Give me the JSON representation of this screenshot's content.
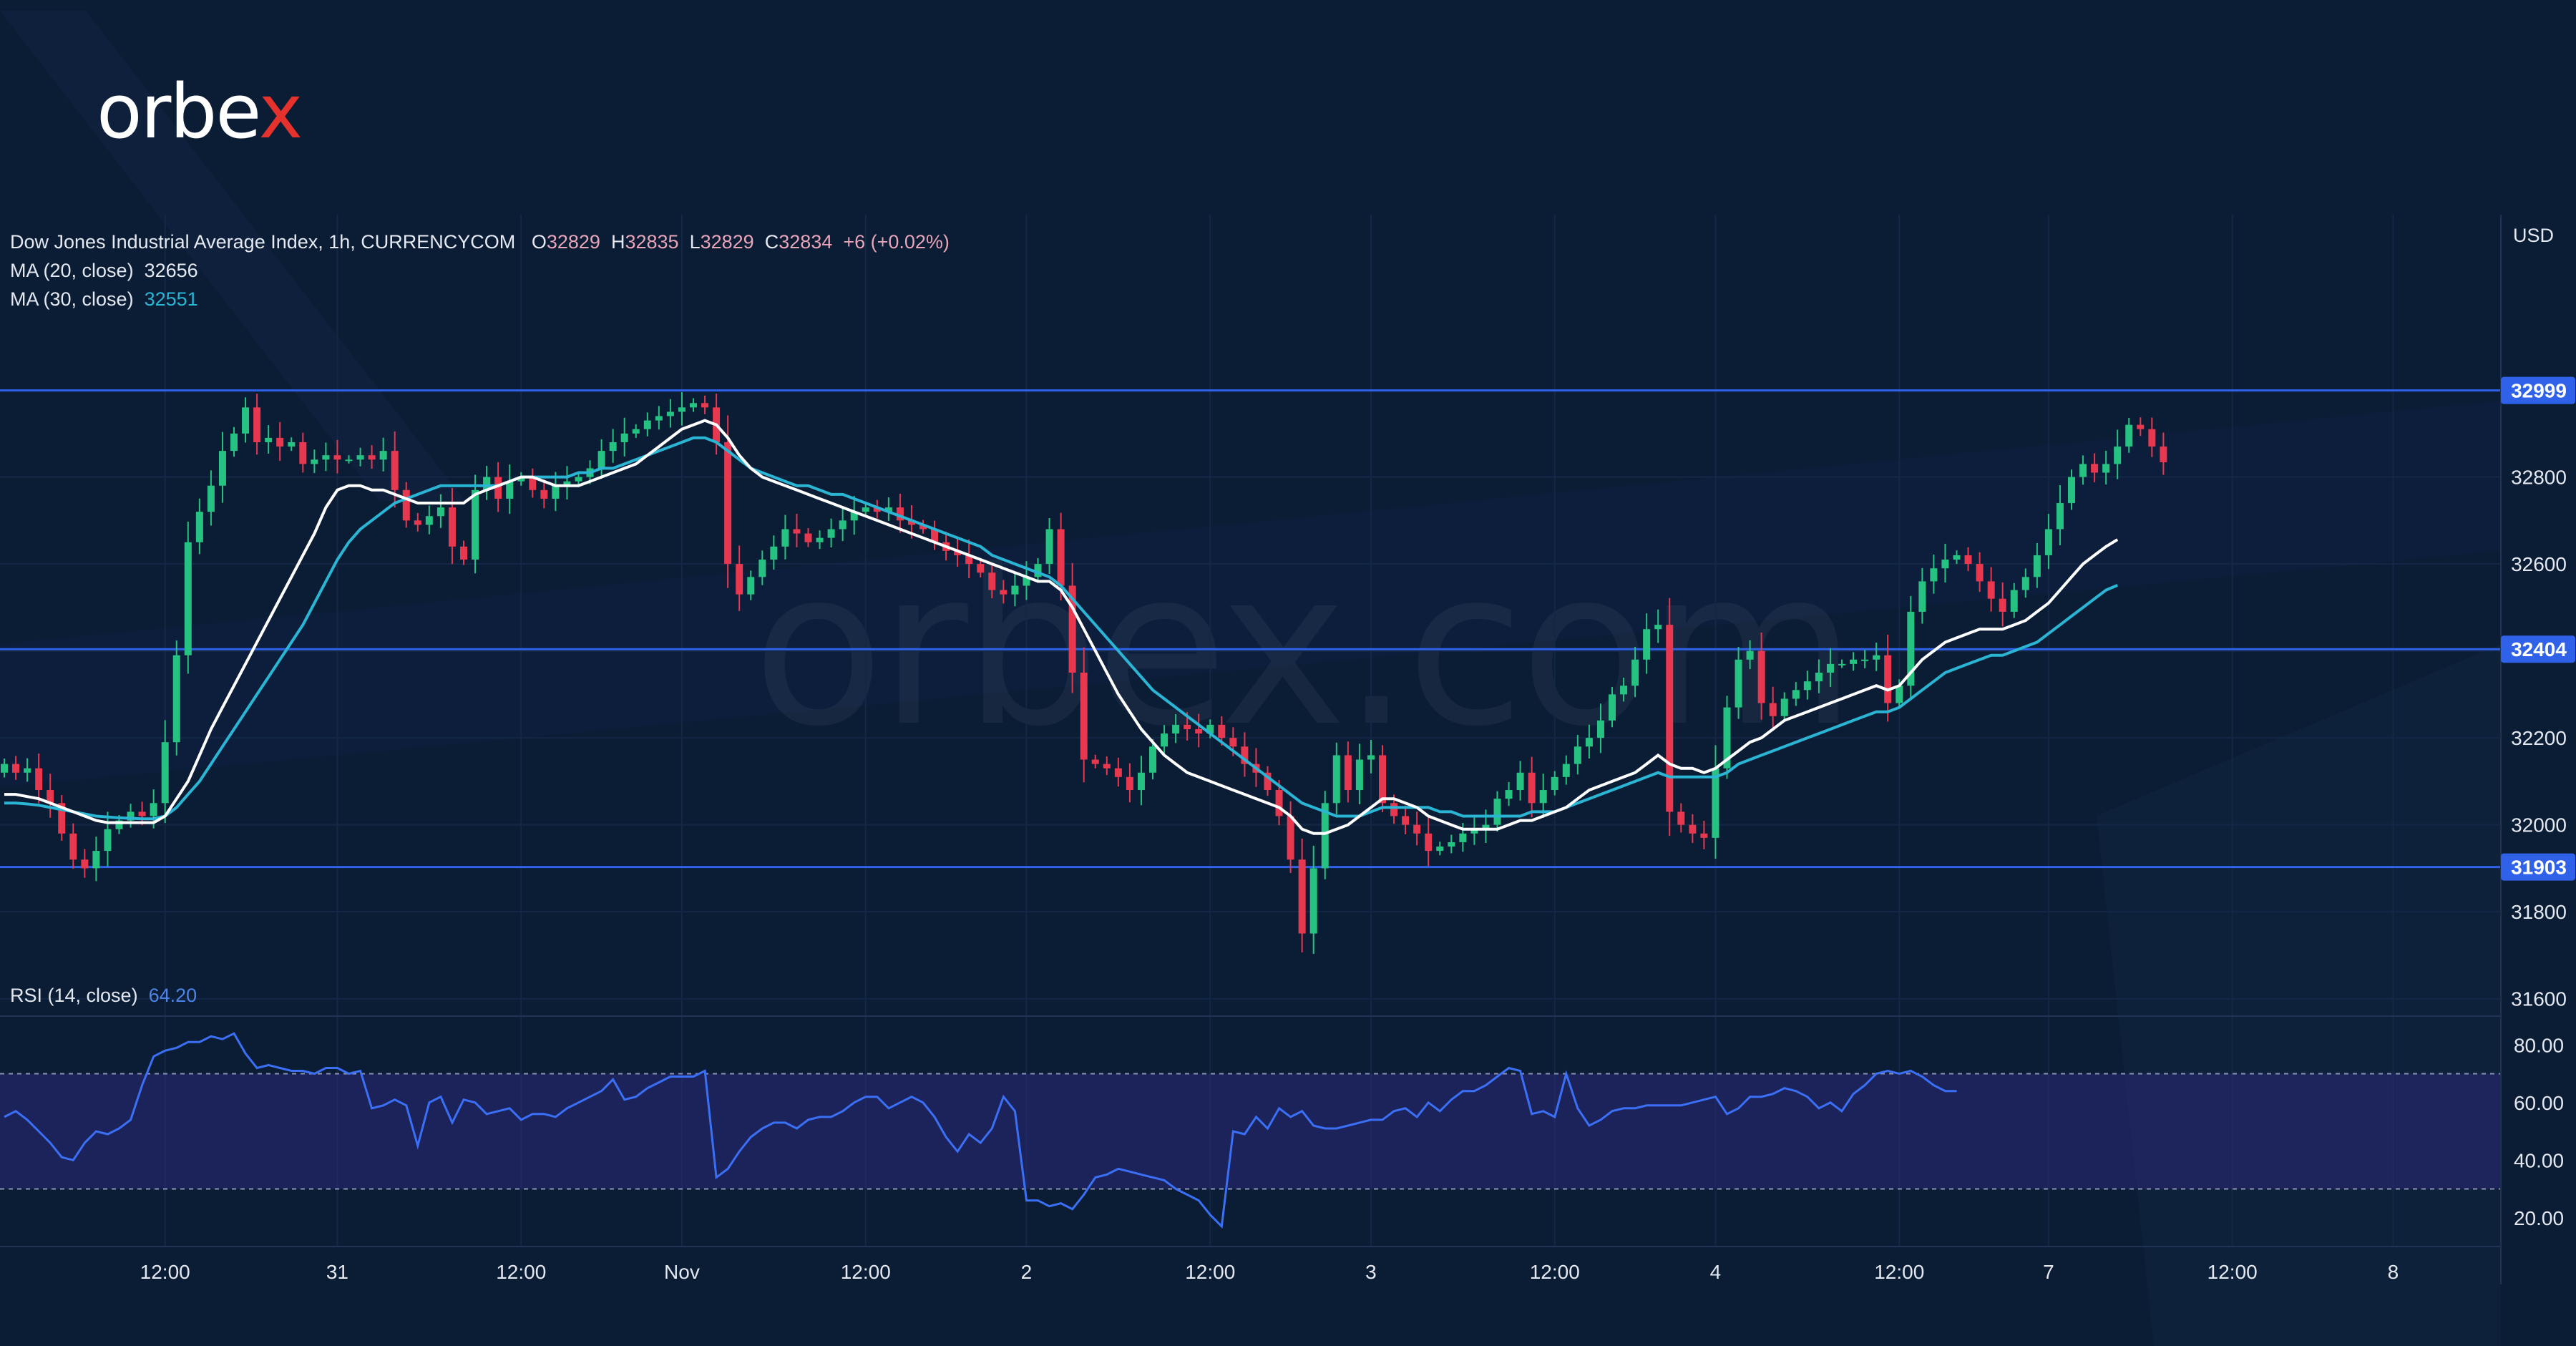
{
  "brand": {
    "logo_text": "orbex",
    "watermark_text": "orbex.com",
    "accent_color": "#e5322d"
  },
  "legend": {
    "symbol": "Dow Jones Industrial Average Index, 1h, CURRENCYCOM",
    "o_label": "O",
    "o_value": "32829",
    "h_label": "H",
    "h_value": "32835",
    "l_label": "L",
    "l_value": "32829",
    "c_label": "C",
    "c_value": "32834",
    "change": "+6 (+0.02%)",
    "ma20_label": "MA (20, close)",
    "ma20_value": "32656",
    "ma30_label": "MA (30, close)",
    "ma30_value": "32551",
    "rsi_label": "RSI (14, close)",
    "rsi_value": "64.20"
  },
  "currency": "USD",
  "colors": {
    "up": "#26c281",
    "down": "#e8384f",
    "ma20": "#ffffff",
    "ma30": "#29b5d3",
    "level": "#2f62e8",
    "rsi": "#3b6ff5",
    "rsi_band": "#2a2a78"
  },
  "chart_data": {
    "type": "candlestick",
    "y_range": [
      31560,
      33140
    ],
    "y_ticks": [
      "31600",
      "31800",
      "32000",
      "32200",
      "32400",
      "32600",
      "32800"
    ],
    "levels": [
      {
        "value": 32999,
        "label": "32999"
      },
      {
        "value": 32404,
        "label": "32404"
      },
      {
        "value": 31903,
        "label": "31903"
      }
    ],
    "x_labels": [
      {
        "i": 14,
        "label": "12:00"
      },
      {
        "i": 29,
        "label": "31"
      },
      {
        "i": 45,
        "label": "12:00"
      },
      {
        "i": 59,
        "label": "Nov"
      },
      {
        "i": 75,
        "label": "12:00"
      },
      {
        "i": 89,
        "label": "2"
      },
      {
        "i": 105,
        "label": "12:00"
      },
      {
        "i": 119,
        "label": "3"
      },
      {
        "i": 135,
        "label": "12:00"
      },
      {
        "i": 149,
        "label": "4"
      },
      {
        "i": 165,
        "label": "12:00"
      },
      {
        "i": 178,
        "label": "7"
      },
      {
        "i": 194,
        "label": "12:00"
      },
      {
        "i": 208,
        "label": "8"
      }
    ],
    "close": [
      32140,
      32120,
      32130,
      32080,
      32050,
      31980,
      31920,
      31900,
      31940,
      31990,
      32010,
      32030,
      32020,
      32050,
      32190,
      32390,
      32650,
      32720,
      32780,
      32860,
      32900,
      32960,
      32880,
      32890,
      32870,
      32880,
      32830,
      32840,
      32850,
      32840,
      32840,
      32850,
      32840,
      32860,
      32770,
      32700,
      32690,
      32710,
      32730,
      32640,
      32610,
      32770,
      32800,
      32750,
      32790,
      32800,
      32770,
      32750,
      32780,
      32790,
      32800,
      32820,
      32860,
      32880,
      32900,
      32910,
      32930,
      32940,
      32950,
      32960,
      32970,
      32960,
      32880,
      32600,
      32530,
      32570,
      32610,
      32640,
      32680,
      32670,
      32650,
      32660,
      32680,
      32700,
      32720,
      32730,
      32720,
      32730,
      32700,
      32690,
      32680,
      32650,
      32630,
      32620,
      32600,
      32580,
      32540,
      32530,
      32550,
      32570,
      32600,
      32680,
      32550,
      32350,
      32150,
      32140,
      32130,
      32110,
      32080,
      32120,
      32180,
      32210,
      32230,
      32220,
      32210,
      32230,
      32200,
      32180,
      32140,
      32120,
      32080,
      32020,
      31920,
      31750,
      31900,
      32050,
      32160,
      32080,
      32150,
      32160,
      32050,
      32020,
      32000,
      31980,
      31940,
      31950,
      31960,
      31980,
      31990,
      32000,
      32060,
      32080,
      32120,
      32050,
      32080,
      32110,
      32140,
      32180,
      32200,
      32240,
      32300,
      32320,
      32380,
      32450,
      32460,
      32030,
      32000,
      31980,
      31970,
      32130,
      32270,
      32380,
      32400,
      32280,
      32250,
      32290,
      32310,
      32330,
      32350,
      32370,
      32370,
      32380,
      32380,
      32390,
      32280,
      32320,
      32490,
      32560,
      32590,
      32610,
      32620,
      32600,
      32560,
      32520,
      32490,
      32540,
      32570,
      32620,
      32680,
      32740,
      32800,
      32830,
      32810,
      32830,
      32870,
      32920,
      32910,
      32870,
      32834
    ],
    "ma20": [
      32070,
      32070,
      32065,
      32060,
      32050,
      32040,
      32030,
      32020,
      32010,
      32005,
      32005,
      32005,
      32005,
      32005,
      32020,
      32060,
      32100,
      32160,
      32220,
      32270,
      32320,
      32370,
      32420,
      32470,
      32520,
      32570,
      32620,
      32670,
      32730,
      32770,
      32780,
      32780,
      32770,
      32770,
      32760,
      32750,
      32740,
      32740,
      32740,
      32740,
      32740,
      32760,
      32770,
      32780,
      32790,
      32800,
      32800,
      32790,
      32780,
      32780,
      32780,
      32790,
      32800,
      32810,
      32820,
      32830,
      32850,
      32870,
      32890,
      32910,
      32920,
      32930,
      32920,
      32890,
      32850,
      32820,
      32800,
      32790,
      32780,
      32770,
      32760,
      32750,
      32740,
      32730,
      32720,
      32710,
      32700,
      32690,
      32680,
      32670,
      32660,
      32650,
      32640,
      32630,
      32620,
      32610,
      32600,
      32590,
      32580,
      32570,
      32560,
      32560,
      32540,
      32500,
      32450,
      32400,
      32350,
      32300,
      32260,
      32220,
      32190,
      32160,
      32140,
      32120,
      32110,
      32100,
      32090,
      32080,
      32070,
      32060,
      32050,
      32040,
      32020,
      31990,
      31980,
      31980,
      31990,
      32000,
      32020,
      32040,
      32060,
      32060,
      32050,
      32040,
      32020,
      32010,
      32000,
      31990,
      31990,
      31990,
      31990,
      32000,
      32010,
      32010,
      32020,
      32030,
      32040,
      32060,
      32080,
      32090,
      32100,
      32110,
      32120,
      32140,
      32160,
      32140,
      32130,
      32130,
      32120,
      32130,
      32150,
      32170,
      32190,
      32200,
      32220,
      32240,
      32250,
      32260,
      32270,
      32280,
      32290,
      32300,
      32310,
      32320,
      32310,
      32320,
      32350,
      32380,
      32400,
      32420,
      32430,
      32440,
      32450,
      32450,
      32450,
      32460,
      32470,
      32490,
      32510,
      32540,
      32570,
      32600,
      32620,
      32640,
      32656
    ],
    "ma30": [
      32050,
      32050,
      32048,
      32045,
      32040,
      32035,
      32030,
      32025,
      32020,
      32018,
      32016,
      32015,
      32014,
      32014,
      32020,
      32040,
      32070,
      32100,
      32140,
      32180,
      32220,
      32260,
      32300,
      32340,
      32380,
      32420,
      32460,
      32510,
      32560,
      32610,
      32650,
      32680,
      32700,
      32720,
      32740,
      32750,
      32760,
      32770,
      32780,
      32780,
      32780,
      32780,
      32780,
      32780,
      32790,
      32800,
      32800,
      32800,
      32800,
      32800,
      32810,
      32810,
      32820,
      32820,
      32830,
      32840,
      32850,
      32860,
      32870,
      32880,
      32890,
      32890,
      32880,
      32860,
      32840,
      32820,
      32810,
      32800,
      32790,
      32780,
      32780,
      32770,
      32760,
      32760,
      32750,
      32740,
      32730,
      32720,
      32710,
      32700,
      32690,
      32680,
      32670,
      32660,
      32650,
      32640,
      32620,
      32610,
      32600,
      32590,
      32580,
      32570,
      32550,
      32520,
      32490,
      32460,
      32430,
      32400,
      32370,
      32340,
      32310,
      32290,
      32270,
      32250,
      32230,
      32210,
      32190,
      32170,
      32150,
      32130,
      32110,
      32090,
      32070,
      32050,
      32040,
      32030,
      32020,
      32020,
      32020,
      32030,
      32040,
      32040,
      32040,
      32040,
      32040,
      32030,
      32030,
      32020,
      32020,
      32020,
      32020,
      32020,
      32020,
      32030,
      32030,
      32030,
      32040,
      32050,
      32060,
      32070,
      32080,
      32090,
      32100,
      32110,
      32120,
      32110,
      32110,
      32110,
      32110,
      32110,
      32120,
      32140,
      32150,
      32160,
      32170,
      32180,
      32190,
      32200,
      32210,
      32220,
      32230,
      32240,
      32250,
      32260,
      32260,
      32270,
      32290,
      32310,
      32330,
      32350,
      32360,
      32370,
      32380,
      32390,
      32390,
      32400,
      32410,
      32420,
      32440,
      32460,
      32480,
      32500,
      32520,
      32540,
      32551
    ],
    "rsi_range": [
      10,
      90
    ],
    "rsi_ticks": [
      "20.00",
      "40.00",
      "60.00",
      "80.00"
    ],
    "rsi_bands": [
      30,
      70
    ],
    "rsi": [
      55,
      57,
      54,
      50,
      46,
      41,
      40,
      46,
      50,
      49,
      51,
      54,
      66,
      76,
      78,
      79,
      81,
      81,
      83,
      82,
      84,
      77,
      72,
      73,
      72,
      71,
      71,
      70,
      72,
      72,
      70,
      71,
      58,
      59,
      61,
      59,
      45,
      60,
      62,
      53,
      61,
      60,
      56,
      57,
      58,
      54,
      56,
      56,
      55,
      58,
      60,
      62,
      64,
      68,
      61,
      62,
      65,
      67,
      69,
      69,
      69,
      71,
      34,
      37,
      43,
      48,
      51,
      53,
      53,
      51,
      54,
      55,
      55,
      57,
      60,
      62,
      62,
      58,
      60,
      62,
      60,
      55,
      48,
      43,
      49,
      46,
      51,
      62,
      57,
      26,
      26,
      24,
      25,
      23,
      28,
      34,
      35,
      37,
      36,
      35,
      34,
      33,
      30,
      28,
      26,
      21,
      17,
      50,
      49,
      55,
      51,
      58,
      55,
      57,
      52,
      51,
      51,
      52,
      53,
      54,
      54,
      57,
      58,
      55,
      60,
      57,
      61,
      64,
      64,
      66,
      69,
      72,
      71,
      56,
      57,
      55,
      70,
      58,
      52,
      54,
      57,
      58,
      58,
      59,
      59,
      59,
      59,
      60,
      61,
      62,
      56,
      58,
      62,
      62,
      63,
      65,
      64,
      62,
      58,
      60,
      57,
      63,
      66,
      70,
      71,
      70,
      71,
      69,
      66,
      64,
      64
    ]
  }
}
